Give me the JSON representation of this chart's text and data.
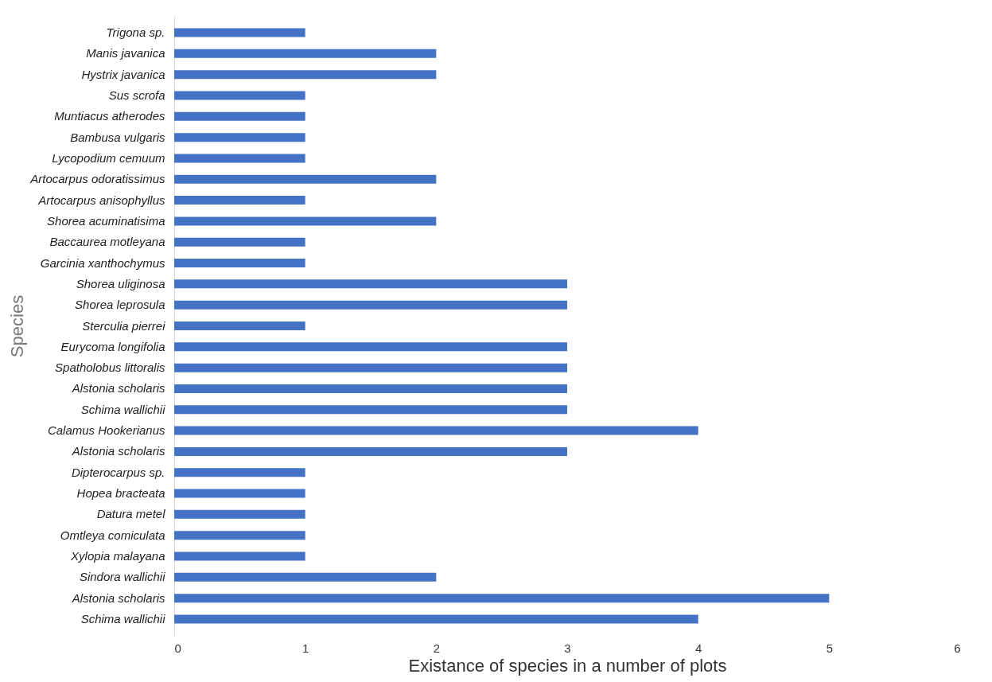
{
  "chart_data": {
    "type": "bar",
    "orientation": "horizontal",
    "xlabel": "Existance of species in a number of plots",
    "ylabel": "Species",
    "categories": [
      "Trigona sp.",
      "Manis javanica",
      "Hystrix javanica",
      "Sus scrofa",
      "Muntiacus atherodes",
      "Bambusa vulgaris",
      "Lycopodium cemuum",
      "Artocarpus odoratissimus",
      "Artocarpus anisophyllus",
      "Shorea acuminatisima",
      "Baccaurea motleyana",
      "Garcinia xanthochymus",
      "Shorea uliginosa",
      "Shorea leprosula",
      "Sterculia pierrei",
      "Eurycoma longifolia",
      "Spatholobus littoralis",
      "Alstonia scholaris",
      "Schima wallichii",
      "Calamus Hookerianus",
      "Alstonia scholaris ",
      "Dipterocarpus sp.",
      "Hopea bracteata",
      "Datura metel",
      "Omtleya comiculata",
      "Xylopia malayana",
      "Sindora wallichii",
      "Alstonia scholaris",
      "Schima wallichii"
    ],
    "values": [
      1,
      2,
      2,
      1,
      1,
      1,
      1,
      2,
      1,
      2,
      1,
      1,
      3,
      3,
      1,
      3,
      3,
      3,
      3,
      4,
      3,
      1,
      1,
      1,
      1,
      1,
      2,
      5,
      4
    ],
    "color": "#4472c4",
    "xlim": [
      0,
      6
    ],
    "xticks": [
      0,
      1,
      2,
      3,
      4,
      5,
      6
    ]
  }
}
